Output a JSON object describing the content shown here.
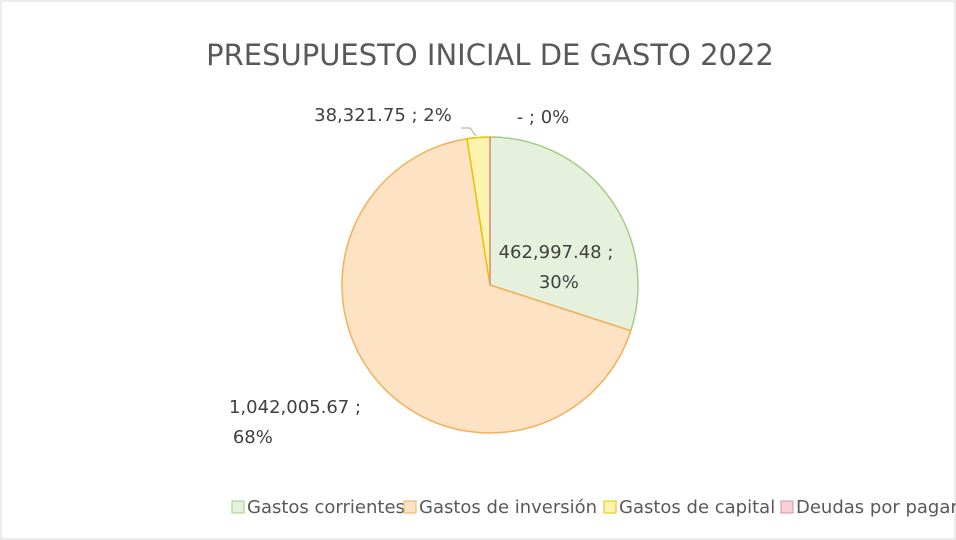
{
  "chart_data": {
    "type": "pie",
    "title": "PRESUPUESTO INICIAL DE GASTO 2022",
    "categories": [
      "Gastos corrientes",
      "Gastos de inversión",
      "Gastos de capital",
      "Deudas por pagar"
    ],
    "values": [
      462997.48,
      1042005.67,
      38321.75,
      0
    ],
    "value_labels": [
      "462,997.48 ; 30%",
      "1,042,005.67 ; 68%",
      "38,321.75 ; 2%",
      "- ; 0%"
    ],
    "colors": [
      "#e6f1dd",
      "#fde2c4",
      "#fff3b0",
      "#f9d0d8"
    ],
    "legend": "bottom"
  }
}
